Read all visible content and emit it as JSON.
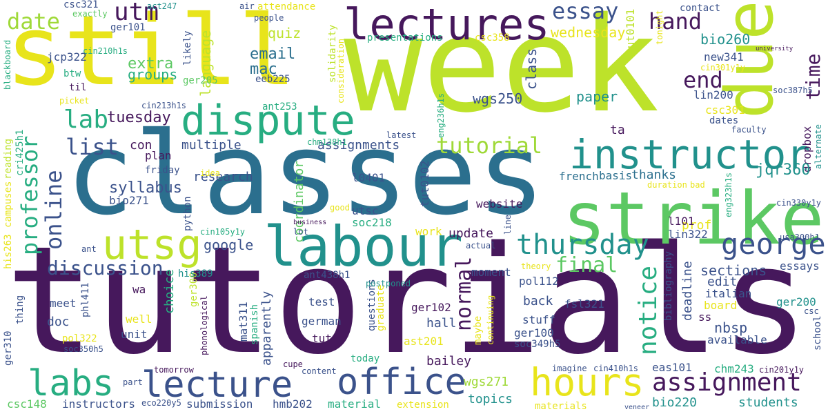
{
  "colors": {
    "background": "#ffffff",
    "c1": "#46185c",
    "c2": "#2b6f8e",
    "c3": "#bde22a",
    "c4": "#e8e41b",
    "c5": "#5cc863",
    "c6": "#21918c",
    "c7": "#3b528b",
    "c8": "#9fd938",
    "c9": "#27ad81",
    "c10": "#472d7b"
  },
  "words": {
    "tutorials": "tutorials",
    "classes": "classes",
    "week": "week",
    "still": "still",
    "due": "due",
    "strike": "strike",
    "labour": "labour",
    "lectures": "lectures",
    "instructor": "instructor",
    "dispute": "dispute",
    "utsg": "utsg",
    "office": "office",
    "lecture": "lecture",
    "labs": "labs",
    "hours": "hours",
    "assignment": "assignment",
    "george": "george",
    "thursday": "thursday",
    "professor": "professor",
    "online": "online",
    "tutorial": "tutorial",
    "notice": "notice",
    "final": "final",
    "normal": "normal",
    "discussion": "discussion",
    "essay": "essay",
    "date": "date",
    "utm": "utm",
    "hand": "hand",
    "end": "end",
    "time": "time",
    "lab": "lab",
    "list": "list",
    "tuesday": "tuesday",
    "syllabus": "syllabus",
    "email": "email",
    "mac": "mac",
    "quiz": "quiz",
    "extra": "extra",
    "groups": "groups",
    "language": "language",
    "wednesday": "wednesday",
    "bio260": "bio260",
    "new341": "new341",
    "lin200": "lin200",
    "csc301": "csc301",
    "dates": "dates",
    "dropbox": "dropbox",
    "wgs250": "wgs250",
    "paper": "paper",
    "class": "class",
    "ta": "ta",
    "jqr360": "jqr360",
    "thanks": "thanks",
    "basis": "basis",
    "french": "french",
    "research": "research",
    "multiple": "multiple",
    "assignments": "assignments",
    "con": "con",
    "plan": "plan",
    "bio271": "bio271",
    "google": "google",
    "coordinator": "coordinator",
    "apparently": "apparently",
    "update": "update",
    "website": "website",
    "soc218": "soc218",
    "utsc": "utsc",
    "work": "work",
    "l0401": "l0401",
    "tut0102": "tut0102",
    "tut0101": "tut0101",
    "prof": "prof",
    "l101": "l101",
    "lin322": "lin322",
    "sections": "sections",
    "edit": "edit",
    "essays": "essays",
    "deadline": "deadline",
    "bibliography": "bibliography",
    "italian": "italian",
    "board": "board",
    "ss": "ss",
    "nbsp": "nbsp",
    "ger200": "ger200",
    "available": "available",
    "school": "school",
    "csc": "csc",
    "fsl321": "fsl321",
    "stuff": "stuff",
    "back": "back",
    "choice": "choice",
    "hall": "hall",
    "bailey": "bailey",
    "doc": "doc",
    "meet": "meet",
    "well": "well",
    "unit": "unit",
    "ger300": "ger300",
    "mat311": "mat311",
    "test": "test",
    "german": "german",
    "tut": "tut",
    "ger102": "ger102",
    "ger100": "ger100",
    "ast201": "ast201",
    "questions": "questions",
    "graduate": "graduate",
    "maybe": "maybe",
    "continuing": "continuing",
    "soc349h5": "soc349h5",
    "pol112": "pol112",
    "moment": "moment",
    "theory": "theory",
    "actual": "actual",
    "postponed": "postponed",
    "ant438h1": "ant438h1",
    "his389": "his389",
    "wa": "wa",
    "ant": "ant",
    "his263": "his263",
    "campuses": "campuses",
    "reading": "reading",
    "cri425h1": "cri425h1",
    "friday": "friday",
    "idea": "idea",
    "python": "python",
    "lot": "lot",
    "cin105y1y": "cin105y1y",
    "business": "business",
    "good": "good",
    "chm138h1": "chm138h1",
    "ant253": "ant253",
    "cin213h1s": "cin213h1s",
    "latest": "latest",
    "eng236h1s": "eng236h1s",
    "eng323h1s": "eng323h1s",
    "duration": "duration",
    "bad": "bad",
    "line": "line",
    "cin330y1y": "cin330y1y",
    "alternate": "alternate",
    "faculty": "faculty",
    "soc387h5": "soc387h5",
    "cin301y1y": "cin301y1y",
    "university": "university",
    "tonight": "tonight",
    "contact": "contact",
    "csc358": "csc358",
    "presentations": "presentations",
    "solidarity": "solidarity",
    "consideration": "consideration",
    "people": "people",
    "exactly": "exactly",
    "act247": "act247",
    "air": "air",
    "attendance": "attendance",
    "csc321": "csc321",
    "ger101": "ger101",
    "cin210h1s": "cin210h1s",
    "jcp322": "jcp322",
    "btw": "btw",
    "til": "til",
    "blackboard": "blackboard",
    "picket": "picket",
    "likely": "likely",
    "ger205": "ger205",
    "eeb225": "eeb225",
    "phl411": "phl411",
    "pol322": "pol322",
    "soc350h5": "soc350h5",
    "ger310": "ger310",
    "thing": "thing",
    "phonological": "phonological",
    "spanish": "spanish",
    "cupe": "cupe",
    "today": "today",
    "tomorrow": "tomorrow",
    "content": "content",
    "part": "part",
    "csc148": "csc148",
    "instructors": "instructors",
    "eco220y5": "eco220y5",
    "submission": "submission",
    "hmb202": "hmb202",
    "material": "material",
    "extension": "extension",
    "topics": "topics",
    "wgs271": "wgs271",
    "materials": "materials",
    "veneer": "veneer",
    "bio220": "bio220",
    "students": "students",
    "imagine": "imagine",
    "cin410h1s": "cin410h1s",
    "eas101": "eas101",
    "chm243": "chm243",
    "cin201y1y": "cin201y1y",
    "usa300h1": "usa300h1"
  }
}
